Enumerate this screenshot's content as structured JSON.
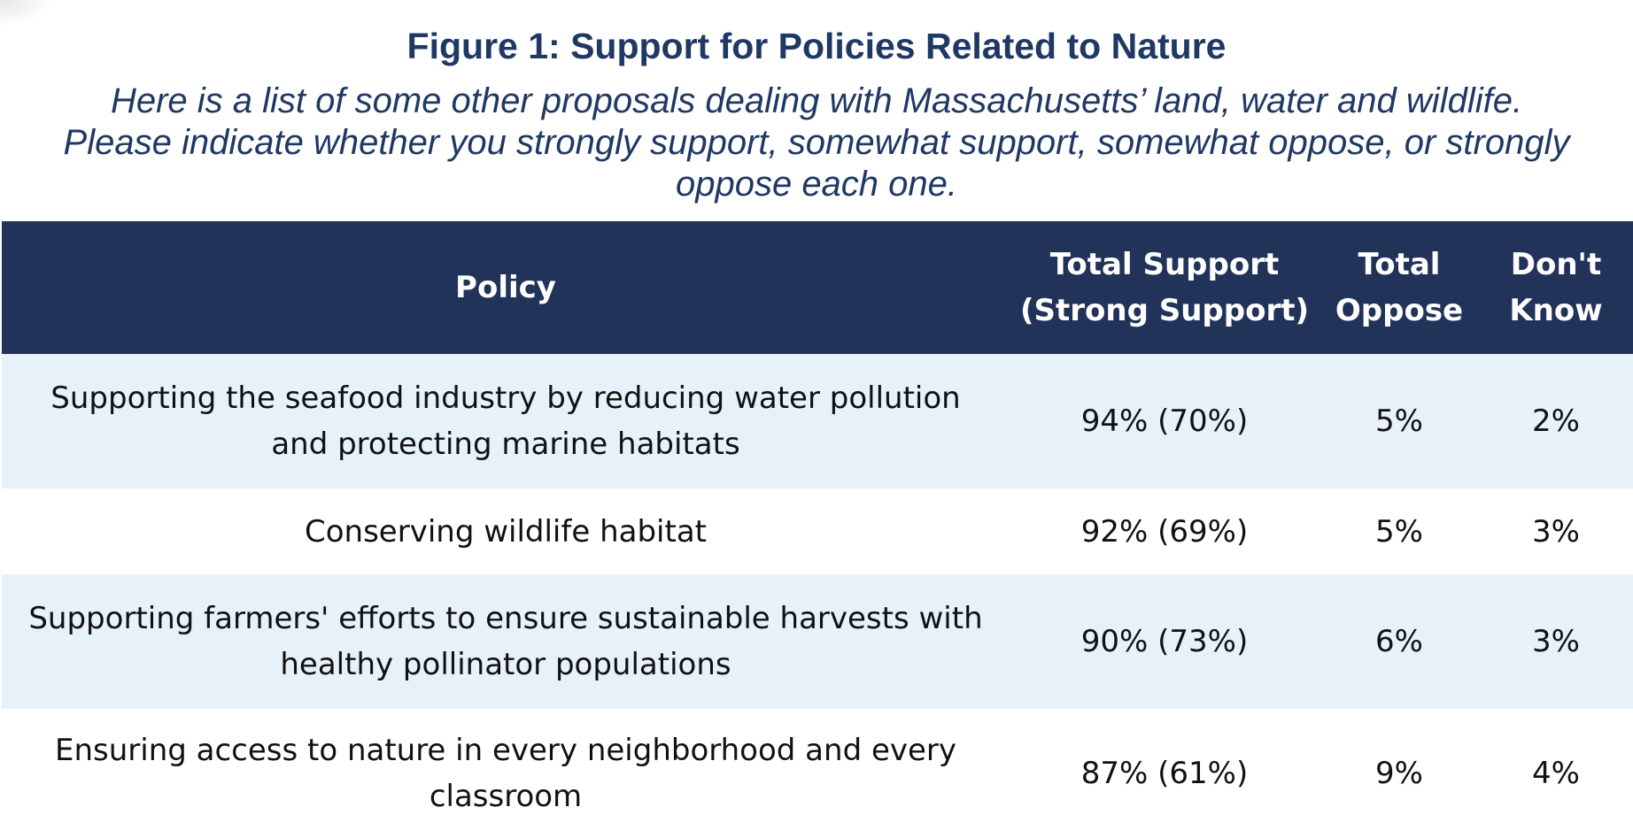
{
  "chart_data": {
    "type": "table",
    "title": "Figure 1: Support for Policies Related to Nature",
    "subtitle_lines": [
      "Here is a list of some other proposals dealing with Massachusetts’ land, water and wildlife.",
      "Please indicate whether you strongly support, somewhat support, somewhat oppose, or strongly",
      "oppose each one."
    ],
    "columns": [
      {
        "lines": [
          "Policy"
        ]
      },
      {
        "lines": [
          "Total Support",
          "(Strong Support)"
        ]
      },
      {
        "lines": [
          "Total",
          "Oppose"
        ]
      },
      {
        "lines": [
          "Don't",
          "Know"
        ]
      }
    ],
    "rows": [
      {
        "policy_lines": [
          "Supporting the seafood industry by reducing water pollution",
          "and protecting marine habitats"
        ],
        "support": "94% (70%)",
        "oppose": "5%",
        "dont_know": "2%"
      },
      {
        "policy_lines": [
          "Conserving wildlife habitat"
        ],
        "support": "92% (69%)",
        "oppose": "5%",
        "dont_know": "3%"
      },
      {
        "policy_lines": [
          "Supporting farmers' efforts to ensure sustainable harvests with",
          "healthy pollinator populations"
        ],
        "support": "90% (73%)",
        "oppose": "6%",
        "dont_know": "3%"
      },
      {
        "policy_lines": [
          "Ensuring access to nature in every neighborhood and every",
          "classroom"
        ],
        "support": "87% (61%)",
        "oppose": "9%",
        "dont_know": "4%"
      }
    ]
  },
  "colors": {
    "title": "#1f3864",
    "header_bg": "#223359",
    "row_alt_bg": "#e6f1fa"
  }
}
